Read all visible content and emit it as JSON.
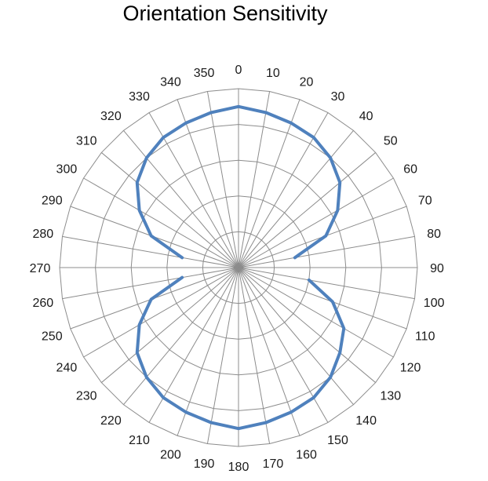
{
  "chart_data": {
    "type": "radar",
    "title": "Orientation Sensitivity",
    "angle_labels": [
      "0",
      "10",
      "20",
      "30",
      "40",
      "50",
      "60",
      "70",
      "80",
      "90",
      "100",
      "110",
      "120",
      "130",
      "140",
      "150",
      "160",
      "170",
      "180",
      "190",
      "200",
      "210",
      "220",
      "230",
      "240",
      "250",
      "260",
      "270",
      "280",
      "290",
      "300",
      "310",
      "320",
      "330",
      "340",
      "350"
    ],
    "radial_range": [
      0,
      5
    ],
    "radial_ticks": [
      0,
      1,
      2,
      3,
      4,
      5
    ],
    "grid": true,
    "legend": "none",
    "series": [
      {
        "color": "#4f81bd",
        "theta": [
          0,
          10,
          20,
          30,
          40,
          50,
          60,
          70,
          80,
          100,
          110,
          120,
          130,
          140,
          150,
          160,
          170,
          180,
          190,
          200,
          210,
          220,
          230,
          240,
          250,
          260,
          280,
          290,
          300,
          310,
          320,
          330,
          340,
          350
        ],
        "r": [
          4.5,
          4.4,
          4.3,
          4.2,
          4.0,
          3.7,
          3.2,
          2.6,
          1.6,
          2.0,
          2.8,
          3.4,
          3.7,
          4.0,
          4.2,
          4.3,
          4.4,
          4.5,
          4.4,
          4.3,
          4.2,
          4.0,
          3.7,
          3.2,
          2.6,
          1.6,
          1.6,
          2.6,
          3.2,
          3.7,
          4.0,
          4.2,
          4.3,
          4.4
        ]
      }
    ]
  }
}
